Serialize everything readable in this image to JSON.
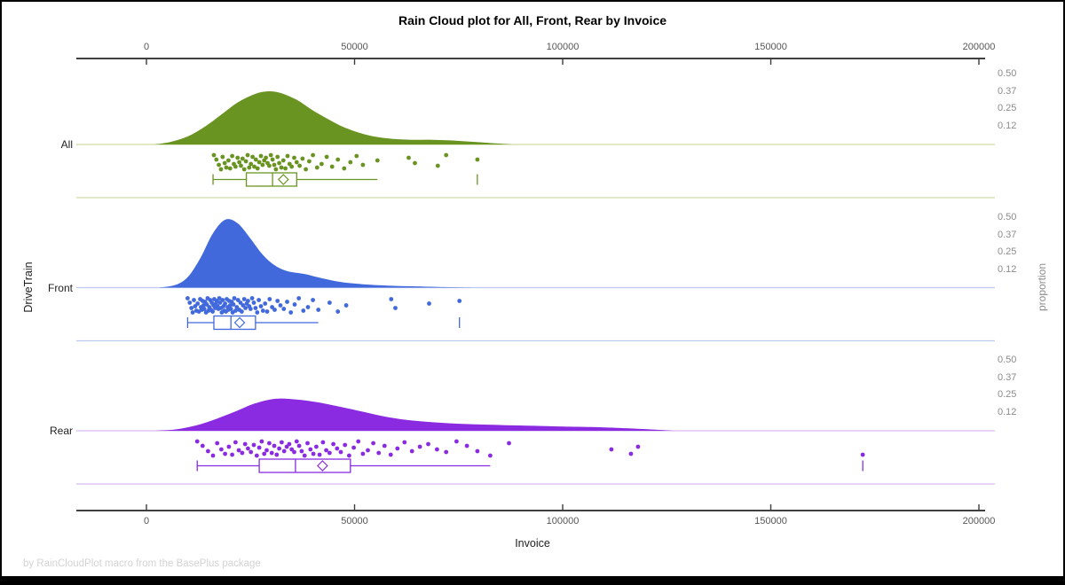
{
  "chart_data": {
    "type": "raincloud",
    "title": "Rain Cloud plot for All, Front, Rear by Invoice",
    "xlabel": "Invoice",
    "left_axis_label": "DriveTrain",
    "right_axis_label": "proportion",
    "footer": "by RainCloudPlot macro from the BasePlus package",
    "x_ticks": [
      "0",
      "50000",
      "100000",
      "150000",
      "200000"
    ],
    "x_tick_values": [
      0,
      50000,
      100000,
      150000,
      200000
    ],
    "x_range": [
      0,
      200000
    ],
    "proportion_tick_labels": [
      "0.50",
      "0.37",
      "0.25",
      "0.12"
    ],
    "proportion_tick_values": [
      0.5,
      0.37,
      0.25,
      0.12
    ],
    "groups": [
      {
        "name": "All",
        "color": "#699421",
        "light_color": "#cdd9a4",
        "density": [
          [
            2000,
            0
          ],
          [
            6000,
            0.02
          ],
          [
            10000,
            0.06
          ],
          [
            14000,
            0.13
          ],
          [
            18000,
            0.22
          ],
          [
            22000,
            0.31
          ],
          [
            26000,
            0.37
          ],
          [
            29000,
            0.39
          ],
          [
            32000,
            0.38
          ],
          [
            36000,
            0.33
          ],
          [
            40000,
            0.25
          ],
          [
            44000,
            0.18
          ],
          [
            48000,
            0.12
          ],
          [
            53000,
            0.07
          ],
          [
            58000,
            0.045
          ],
          [
            63000,
            0.035
          ],
          [
            68000,
            0.035
          ],
          [
            73000,
            0.03
          ],
          [
            78000,
            0.02
          ],
          [
            83000,
            0.01
          ],
          [
            88000,
            0
          ]
        ],
        "box": {
          "whisker_low": 16000,
          "q1": 24000,
          "median": 30300,
          "q3": 36100,
          "whisker_high": 55500,
          "mean": 32900,
          "outliers": [
            79500
          ]
        },
        "points": [
          16200,
          16800,
          17400,
          17900,
          18300,
          18800,
          19200,
          19700,
          20100,
          20600,
          21000,
          21400,
          21900,
          22300,
          22700,
          23100,
          23500,
          23900,
          24300,
          24700,
          25100,
          25500,
          25900,
          26300,
          26700,
          27100,
          27500,
          27900,
          28300,
          28700,
          29100,
          29500,
          29900,
          30300,
          30700,
          31100,
          31500,
          31900,
          32400,
          32900,
          33400,
          33900,
          34400,
          34900,
          35500,
          36100,
          36800,
          37500,
          38300,
          39100,
          40000,
          41000,
          42100,
          43300,
          44600,
          46000,
          47500,
          49000,
          50500,
          52000,
          55500,
          63000,
          64500,
          70000,
          72000,
          79500
        ]
      },
      {
        "name": "Front",
        "color": "#4169db",
        "light_color": "#bccaf0",
        "density": [
          [
            3000,
            0
          ],
          [
            7000,
            0.02
          ],
          [
            10000,
            0.08
          ],
          [
            13000,
            0.22
          ],
          [
            16000,
            0.4
          ],
          [
            19000,
            0.5
          ],
          [
            22000,
            0.47
          ],
          [
            25000,
            0.36
          ],
          [
            28000,
            0.24
          ],
          [
            31000,
            0.16
          ],
          [
            34000,
            0.12
          ],
          [
            38000,
            0.1
          ],
          [
            42000,
            0.07
          ],
          [
            47000,
            0.04
          ],
          [
            52000,
            0.025
          ],
          [
            58000,
            0.015
          ],
          [
            64000,
            0.01
          ],
          [
            70000,
            0.005
          ],
          [
            78000,
            0
          ]
        ],
        "box": {
          "whisker_low": 9900,
          "q1": 16200,
          "median": 20300,
          "q3": 26200,
          "whisker_high": 41300,
          "mean": 22400,
          "outliers": [
            75200
          ]
        },
        "points": [
          9900,
          10400,
          10800,
          11100,
          11400,
          11700,
          12000,
          12300,
          12600,
          12900,
          13100,
          13300,
          13500,
          13700,
          13900,
          14100,
          14300,
          14500,
          14700,
          14900,
          15100,
          15300,
          15500,
          15700,
          15900,
          16100,
          16300,
          16500,
          16700,
          16900,
          17100,
          17300,
          17500,
          17700,
          17900,
          18100,
          18300,
          18500,
          18700,
          18900,
          19100,
          19300,
          19500,
          19700,
          19900,
          20100,
          20300,
          20500,
          20700,
          20900,
          21100,
          21400,
          21700,
          22000,
          22300,
          22600,
          22900,
          23200,
          23500,
          23800,
          24100,
          24400,
          24700,
          25000,
          25400,
          25800,
          26200,
          26600,
          27000,
          27500,
          28000,
          28500,
          29000,
          29600,
          30200,
          30800,
          31500,
          32200,
          33000,
          33800,
          34700,
          35600,
          36600,
          37700,
          38800,
          40000,
          41300,
          44000,
          46000,
          48000,
          58800,
          59800,
          67900,
          75200
        ]
      },
      {
        "name": "Rear",
        "color": "#8a2be2",
        "light_color": "#dabbf2",
        "density": [
          [
            2000,
            0
          ],
          [
            7000,
            0.01
          ],
          [
            12000,
            0.04
          ],
          [
            17000,
            0.09
          ],
          [
            22000,
            0.15
          ],
          [
            26000,
            0.2
          ],
          [
            31000,
            0.235
          ],
          [
            36000,
            0.23
          ],
          [
            41000,
            0.21
          ],
          [
            46000,
            0.18
          ],
          [
            52000,
            0.14
          ],
          [
            58000,
            0.1
          ],
          [
            64000,
            0.075
          ],
          [
            70000,
            0.06
          ],
          [
            76000,
            0.05
          ],
          [
            82000,
            0.045
          ],
          [
            88000,
            0.04
          ],
          [
            95000,
            0.035
          ],
          [
            102000,
            0.03
          ],
          [
            110000,
            0.025
          ],
          [
            118000,
            0.015
          ],
          [
            127000,
            0
          ]
        ],
        "box": {
          "whisker_low": 12200,
          "q1": 27100,
          "median": 35800,
          "q3": 49000,
          "whisker_high": 82600,
          "mean": 42300,
          "outliers": [
            172100
          ]
        },
        "points": [
          12200,
          13500,
          14800,
          16000,
          17000,
          18000,
          18900,
          19800,
          20600,
          21400,
          22200,
          23000,
          23700,
          24400,
          25100,
          25800,
          26500,
          27100,
          27700,
          28300,
          28900,
          29500,
          30100,
          30700,
          31300,
          31900,
          32500,
          33100,
          33700,
          34300,
          34900,
          35500,
          36100,
          36700,
          37300,
          38000,
          38700,
          39400,
          40100,
          40800,
          41600,
          42400,
          43200,
          44000,
          44900,
          45800,
          46700,
          47700,
          48700,
          49800,
          50900,
          52000,
          53200,
          54500,
          55800,
          57200,
          58700,
          60300,
          62000,
          63800,
          65700,
          67700,
          69800,
          72000,
          74500,
          77000,
          79500,
          82600,
          87100,
          111700,
          116400,
          118100,
          172100
        ]
      }
    ]
  }
}
